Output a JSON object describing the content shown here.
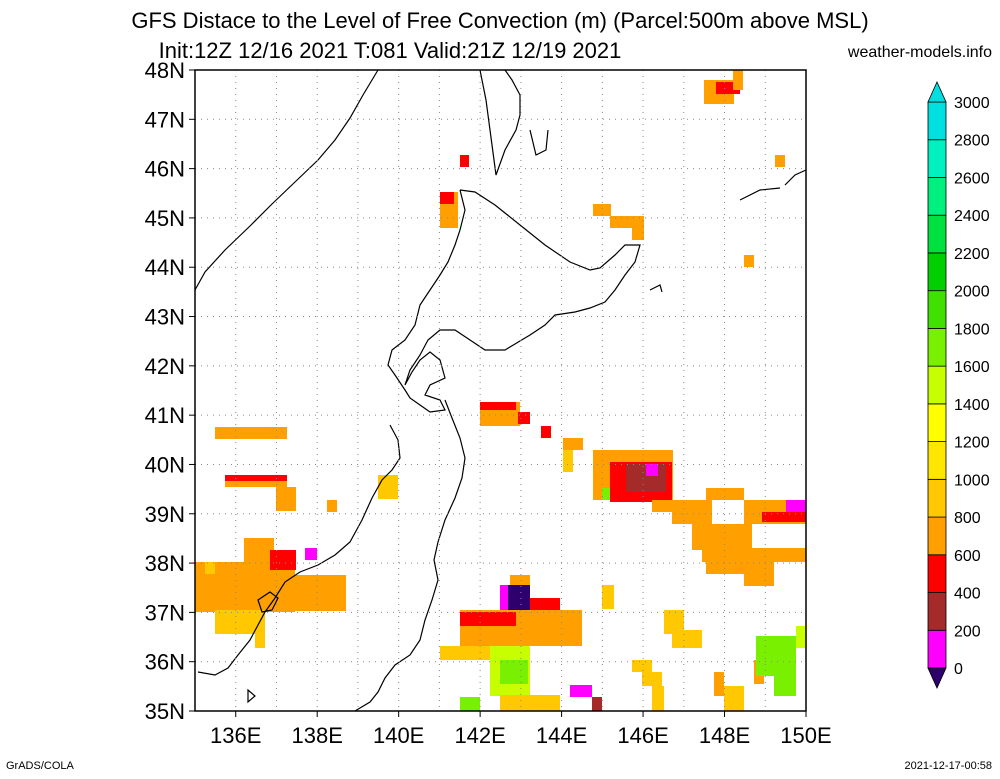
{
  "header": {
    "title_line1": "GFS Distace to the Level of Free Convection (m) (Parcel:500m above MSL)",
    "title_line2": "Init:12Z 12/16 2021 T:081 Valid:21Z 12/19 2021",
    "site": "weather-models.info"
  },
  "footer": {
    "left": "GrADS/COLA",
    "right": "2021-12-17-00:58"
  },
  "map": {
    "lat_labels": [
      "48N",
      "47N",
      "46N",
      "45N",
      "44N",
      "43N",
      "42N",
      "41N",
      "40N",
      "39N",
      "38N",
      "37N",
      "36N",
      "35N"
    ],
    "lon_labels": [
      "136E",
      "138E",
      "140E",
      "142E",
      "144E",
      "146E",
      "148E",
      "150E"
    ],
    "lon_range": [
      135,
      150
    ],
    "lat_range": [
      35,
      48
    ],
    "grid": true
  },
  "colorbar": {
    "labels": [
      "0",
      "200",
      "400",
      "600",
      "800",
      "1000",
      "1200",
      "1400",
      "1600",
      "1800",
      "2000",
      "2200",
      "2400",
      "2600",
      "2800",
      "3000"
    ],
    "colors": [
      "#2d006e",
      "#ff00ff",
      "#a52a2a",
      "#ff0000",
      "#ffa000",
      "#ffc800",
      "#ffe600",
      "#ffff00",
      "#c8ff00",
      "#78f000",
      "#40e000",
      "#00d000",
      "#00e040",
      "#00f080",
      "#00f0c0",
      "#00e0e0"
    ]
  }
}
